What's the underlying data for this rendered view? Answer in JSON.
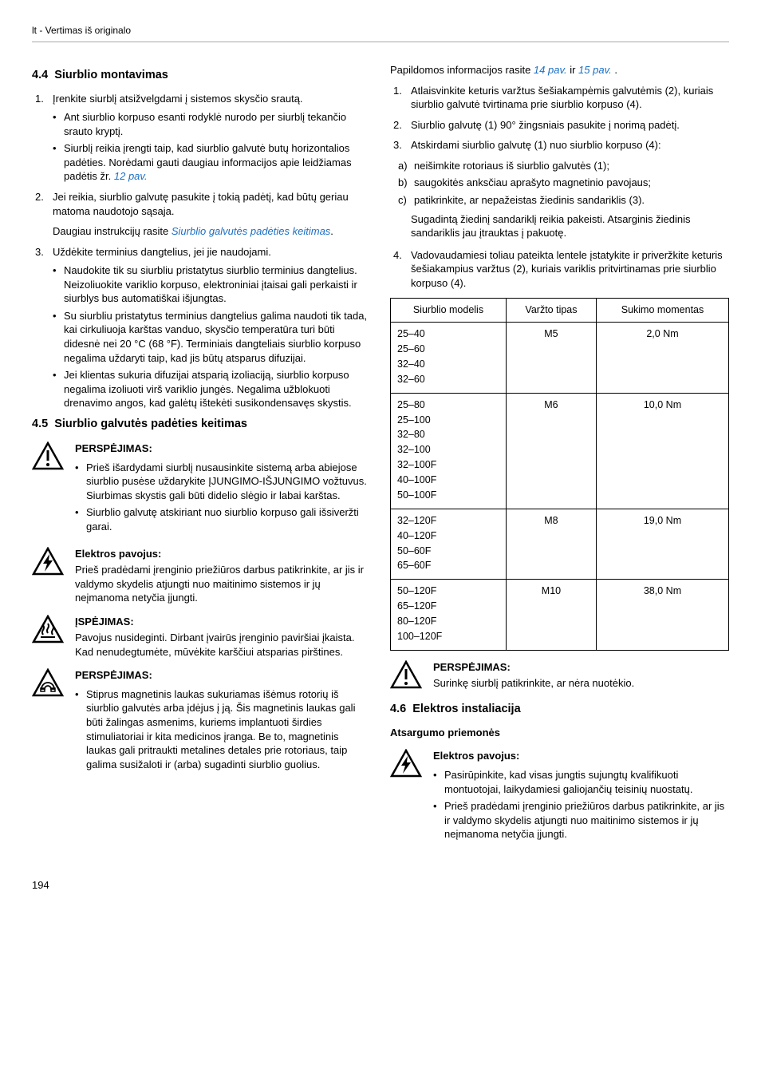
{
  "header": "lt - Vertimas iš originalo",
  "page_number": "194",
  "left": {
    "h44_num": "4.4",
    "h44_title": "Siurblio montavimas",
    "s44_li1": "Įrenkite siurblį atsižvelgdami į sistemos skysčio srautą.",
    "s44_li1_b1": "Ant siurblio korpuso esanti rodyklė nurodo per siurblį tekančio srauto kryptį.",
    "s44_li1_b2a": "Siurblį reikia įrengti taip, kad siurblio galvutė butų horizontalios padėties. Norėdami gauti daugiau informacijos apie leidžiamas padėtis žr. ",
    "s44_li1_b2_link": "12 pav.",
    "s44_li2a": "Jei reikia, siurblio galvutę pasukite į tokią padėtį, kad būtų geriau matoma naudotojo sąsaja.",
    "s44_li2b": "Daugiau instrukcijų rasite ",
    "s44_li2_link": "Siurblio galvutės padėties keitimas",
    "s44_li3": "Uždėkite terminius dangtelius, jei jie naudojami.",
    "s44_li3_b1": "Naudokite tik su siurbliu pristatytus siurblio terminius dangtelius. Neizoliuokite variklio korpuso, elektroniniai įtaisai gali perkaisti ir siurblys bus automatiškai išjungtas.",
    "s44_li3_b2": "Su siurbliu pristatytus terminius dangtelius galima naudoti tik tada, kai cirkuliuoja karštas vanduo, skysčio temperatūra turi būti didesnė nei 20 °C (68 °F). Terminiais dangteliais siurblio korpuso negalima uždaryti taip, kad jis būtų atsparus difuzijai.",
    "s44_li3_b3": "Jei klientas sukuria difuzijai atsparią izoliaciją, siurblio korpuso negalima izoliuoti virš variklio jungės. Negalima užblokuoti drenavimo angos, kad galėtų ištekėti susikondensavęs skystis.",
    "h45_num": "4.5",
    "h45_title": "Siurblio galvutės padėties keitimas",
    "w1_title": "PERSPĖJIMAS:",
    "w1_b1": "Prieš išardydami siurblį nusausinkite sistemą arba abiejose siurblio pusėse uždarykite ĮJUNGIMO-IŠJUNGIMO vožtuvus. Siurbimas skystis gali būti didelio slėgio ir labai karštas.",
    "w1_b2": "Siurblio galvutę atskiriant nuo siurblio korpuso gali išsiveržti garai.",
    "w2_title": "Elektros pavojus:",
    "w2_text": "Prieš pradėdami įrenginio priežiūros darbus patikrinkite, ar jis ir valdymo skydelis atjungti nuo maitinimo sistemos ir jų neįmanoma netyčia įjungti.",
    "w3_title": "ĮSPĖJIMAS:",
    "w3_text": "Pavojus nusideginti. Dirbant įvairūs įrenginio paviršiai įkaista. Kad nenudegtumėte, mūvėkite karščiui atsparias pirštines.",
    "w4_title": "PERSPĖJIMAS:",
    "w4_b1": "Stiprus magnetinis laukas sukuriamas išėmus rotorių iš siurblio galvutės arba įdėjus į ją. Šis magnetinis laukas gali būti žalingas asmenims, kuriems implantuoti širdies stimuliatoriai ir kita medicinos įranga. Be to, magnetinis laukas gali pritraukti metalines detales prie rotoriaus, taip galima susižaloti ir (arba) sugadinti siurblio guolius."
  },
  "right": {
    "intro_a": "Papildomos informacijos rasite ",
    "intro_link1": "14 pav.",
    "intro_mid": " ir ",
    "intro_link2": "15 pav.",
    "intro_end": " .",
    "li1": "Atlaisvinkite keturis varžtus šešiakampėmis galvutėmis (2), kuriais siurblio galvutė tvirtinama prie siurblio korpuso (4).",
    "li2": "Siurblio galvutę (1) 90° žingsniais pasukite į norimą padėtį.",
    "li3": "Atskirdami siurblio galvutę (1) nuo siurblio korpuso (4):",
    "al_a": "neišimkite rotoriaus iš siurblio galvutės (1);",
    "al_b": "saugokitės anksčiau aprašyto magnetinio pavojaus;",
    "al_c": "patikrinkite, ar nepažeistas žiedinis sandariklis (3).",
    "li3_tail": "Sugadintą žiedinį sandariklį reikia pakeisti. Atsarginis žiedinis sandariklis jau įtrauktas į pakuotę.",
    "li4": "Vadovaudamiesi toliau pateikta lentele įstatykite ir priveržkite keturis šešiakampius varžtus (2), kuriais variklis pritvirtinamas prie siurblio korpuso (4).",
    "th1": "Siurblio modelis",
    "th2": "Varžto tipas",
    "th3": "Sukimo momentas",
    "r1_models": [
      "25–40",
      "25–60",
      "32–40",
      "32–60"
    ],
    "r1_type": "M5",
    "r1_tq": "2,0 Nm",
    "r2_models": [
      "25–80",
      "25–100",
      "32–80",
      "32–100",
      "32–100F",
      "40–100F",
      "50–100F"
    ],
    "r2_type": "M6",
    "r2_tq": "10,0 Nm",
    "r3_models": [
      "32–120F",
      "40–120F",
      "50–60F",
      "65–60F"
    ],
    "r3_type": "M8",
    "r3_tq": "19,0 Nm",
    "r4_models": [
      "50–120F",
      "65–120F",
      "80–120F",
      "100–120F"
    ],
    "r4_type": "M10",
    "r4_tq": "38,0 Nm",
    "w5_title": "PERSPĖJIMAS:",
    "w5_text": "Surinkę siurblį patikrinkite, ar nėra nuotėkio.",
    "h46_num": "4.6",
    "h46_title": "Elektros instaliacija",
    "h46_sub": "Atsargumo priemonės",
    "w6_title": "Elektros pavojus:",
    "w6_b1": "Pasirūpinkite, kad visas jungtis sujungtų kvalifikuoti montuotojai, laikydamiesi galiojančių teisinių nuostatų.",
    "w6_b2": "Prieš pradėdami įrenginio priežiūros darbus patikrinkite, ar jis ir valdymo skydelis atjungti nuo maitinimo sistemos ir jų neįmanoma netyčia įjungti."
  },
  "icons": {
    "tri_stroke": "#000",
    "bolt_fill": "#000"
  }
}
